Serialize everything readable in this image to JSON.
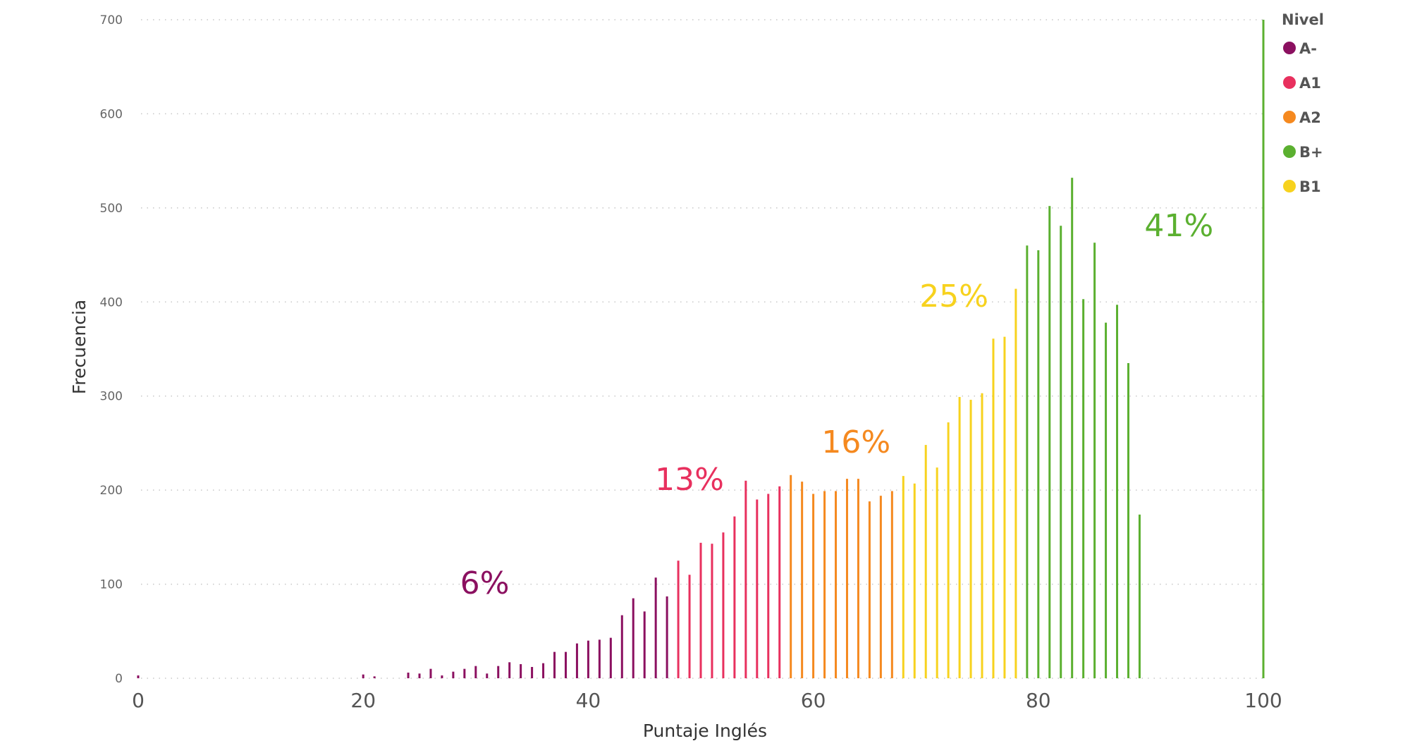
{
  "chart_data": {
    "type": "bar",
    "xlabel": "Puntaje Inglés",
    "ylabel": "Frecuencia",
    "xlim": [
      0,
      100
    ],
    "ylim": [
      0,
      700
    ],
    "x_ticks": [
      0,
      20,
      40,
      60,
      80,
      100
    ],
    "y_ticks": [
      0,
      100,
      200,
      300,
      400,
      500,
      600,
      700
    ],
    "grid": "horizontal-dotted",
    "legend": {
      "title": "Nivel",
      "placement": "top-right",
      "items": [
        {
          "label": "A-",
          "color": "#8b1060"
        },
        {
          "label": "A1",
          "color": "#e8305e"
        },
        {
          "label": "A2",
          "color": "#f5891f"
        },
        {
          "label": "B+",
          "color": "#5bb030"
        },
        {
          "label": "B1",
          "color": "#f7d21e"
        }
      ]
    },
    "series": [
      {
        "level": "A-",
        "color": "#8b1060",
        "label": "6%",
        "label_at": [
          30.8,
          90
        ],
        "x": [
          0,
          20,
          21,
          24,
          25,
          26,
          27,
          28,
          29,
          30,
          31,
          32,
          33,
          34,
          35,
          36,
          37,
          38,
          39,
          40,
          41,
          42,
          43,
          44,
          45,
          46,
          47
        ],
        "y": [
          3,
          4,
          2,
          6,
          5,
          10,
          3,
          7,
          10,
          13,
          5,
          13,
          17,
          15,
          12,
          16,
          28,
          28,
          37,
          40,
          41,
          43,
          67,
          85,
          71,
          107,
          87
        ]
      },
      {
        "level": "A1",
        "color": "#e8305e",
        "label": "13%",
        "label_at": [
          49,
          200
        ],
        "x": [
          48,
          49,
          50,
          51,
          52,
          53,
          54,
          55,
          56,
          57
        ],
        "y": [
          125,
          110,
          144,
          143,
          155,
          172,
          210,
          190,
          196,
          204
        ]
      },
      {
        "level": "A2",
        "color": "#f5891f",
        "label": "16%",
        "label_at": [
          63.8,
          240
        ],
        "x": [
          58,
          59,
          60,
          61,
          62,
          63,
          64,
          65,
          66,
          67
        ],
        "y": [
          216,
          209,
          196,
          199,
          199,
          212,
          212,
          188,
          194,
          199
        ]
      },
      {
        "level": "B1",
        "color": "#f7d21e",
        "label": "25%",
        "label_at": [
          72.5,
          395
        ],
        "x": [
          68,
          69,
          70,
          71,
          72,
          73,
          74,
          75,
          76,
          77,
          78
        ],
        "y": [
          215,
          207,
          248,
          224,
          272,
          299,
          296,
          303,
          361,
          363,
          414
        ]
      },
      {
        "level": "B+",
        "color": "#5bb030",
        "label": "41%",
        "label_at": [
          92.5,
          470
        ],
        "x": [
          79,
          80,
          81,
          82,
          83,
          84,
          85,
          86,
          87,
          88,
          89,
          100
        ],
        "y": [
          460,
          455,
          502,
          481,
          532,
          403,
          463,
          378,
          397,
          335,
          174,
          700
        ]
      }
    ]
  }
}
